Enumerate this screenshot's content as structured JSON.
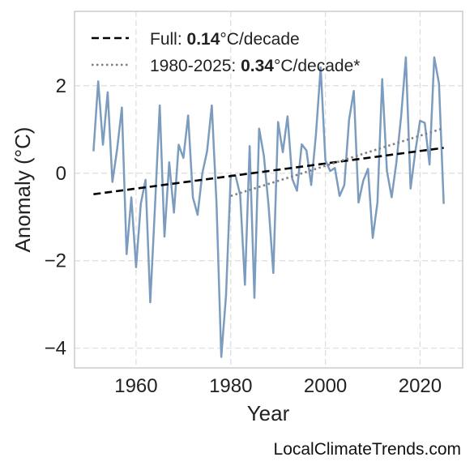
{
  "chart_data": {
    "type": "line",
    "title": "",
    "xlabel": "Year",
    "ylabel": "Anomaly (°C)",
    "xlim": [
      1947,
      2029
    ],
    "ylim": [
      -4.45,
      3.7
    ],
    "x_ticks": [
      1960,
      1980,
      2000,
      2020
    ],
    "y_ticks": [
      2,
      0,
      -2,
      -4
    ],
    "y_tick_labels": [
      "2",
      "0",
      "−2",
      "−4"
    ],
    "grid": true,
    "legend_position": "top-left",
    "series": [
      {
        "style": "solid",
        "color": "#7b9cbf",
        "x": [
          1951,
          1952,
          1953,
          1954,
          1955,
          1956,
          1957,
          1958,
          1959,
          1960,
          1961,
          1962,
          1963,
          1964,
          1965,
          1966,
          1967,
          1968,
          1969,
          1970,
          1971,
          1972,
          1973,
          1974,
          1975,
          1976,
          1977,
          1978,
          1979,
          1980,
          1981,
          1982,
          1983,
          1984,
          1985,
          1986,
          1987,
          1988,
          1989,
          1990,
          1991,
          1992,
          1993,
          1994,
          1995,
          1996,
          1997,
          1998,
          1999,
          2000,
          2001,
          2002,
          2003,
          2004,
          2005,
          2006,
          2007,
          2008,
          2009,
          2010,
          2011,
          2012,
          2013,
          2014,
          2015,
          2016,
          2017,
          2018,
          2019,
          2020,
          2021,
          2022,
          2023,
          2024,
          2025
        ],
        "y": [
          0.5,
          2.1,
          0.65,
          1.85,
          -0.2,
          0.55,
          1.5,
          -1.85,
          -0.55,
          -2.15,
          -0.7,
          -0.15,
          -2.95,
          -0.75,
          1.55,
          -1.45,
          0.25,
          -0.9,
          0.65,
          0.35,
          1.32,
          -0.55,
          -0.95,
          0.0,
          0.5,
          1.55,
          -0.7,
          -4.2,
          -2.8,
          -0.05,
          -0.05,
          -0.5,
          -2.55,
          0.62,
          -2.85,
          1.02,
          0.4,
          -0.75,
          -2.28,
          1.17,
          0.48,
          1.3,
          -0.13,
          -0.4,
          0.66,
          0.52,
          -0.27,
          0.88,
          2.42,
          0.3,
          0.05,
          0.12,
          -0.52,
          -0.27,
          1.22,
          1.88,
          -0.67,
          -0.17,
          0.1,
          -1.48,
          -0.67,
          2.15,
          0.05,
          -0.55,
          0.25,
          1.3,
          2.65,
          -0.35,
          0.5,
          1.2,
          1.15,
          0.2,
          2.65,
          2.05,
          -0.7
        ]
      },
      {
        "name": "Full: 0.14°C/decade",
        "style": "dashed",
        "color": "#000000",
        "x": [
          1951,
          2025
        ],
        "y": [
          -0.48,
          0.58
        ]
      },
      {
        "name": "1980-2025: 0.34°C/decade*",
        "style": "dotted",
        "color": "#808080",
        "x": [
          1980,
          2025
        ],
        "y": [
          -0.52,
          1.03
        ]
      }
    ],
    "legend": [
      {
        "prefix": "Full: ",
        "value": "0.14",
        "suffix": "°C/decade",
        "style": "dashed",
        "color": "#000000"
      },
      {
        "prefix": "1980-2025: ",
        "value": "0.34",
        "suffix": "°C/decade*",
        "style": "dotted",
        "color": "#808080"
      }
    ],
    "source": "LocalClimateTrends.com"
  }
}
